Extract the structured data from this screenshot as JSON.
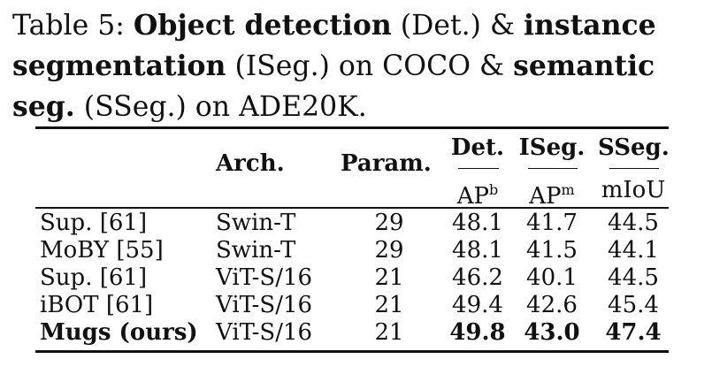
{
  "caption": {
    "label": "Table 5:",
    "p1": "Object detection",
    "p2": " (Det.) & ",
    "p3": "instance segmentation",
    "p4": " (ISeg.) on COCO & ",
    "p5": "semantic seg.",
    "p6": " (SSeg.) on ADE20K."
  },
  "table": {
    "headers": {
      "arch": "Arch.",
      "param": "Param.",
      "det": "Det.",
      "iseg": "ISeg.",
      "sseg": "SSeg."
    },
    "subheaders": {
      "det": "AP",
      "det_sup": "b",
      "iseg": "AP",
      "iseg_sup": "m",
      "sseg": "mIoU"
    },
    "rows": [
      {
        "method": "Sup. [61]",
        "arch": "Swin-T",
        "param": "29",
        "det": "48.1",
        "iseg": "41.7",
        "sseg": "44.5"
      },
      {
        "method": "MoBY [55]",
        "arch": "Swin-T",
        "param": "29",
        "det": "48.1",
        "iseg": "41.5",
        "sseg": "44.1"
      },
      {
        "method": "Sup. [61]",
        "arch": "ViT-S/16",
        "param": "21",
        "det": "46.2",
        "iseg": "40.1",
        "sseg": "44.5"
      },
      {
        "method": "iBOT [61]",
        "arch": "ViT-S/16",
        "param": "21",
        "det": "49.4",
        "iseg": "42.6",
        "sseg": "45.4"
      },
      {
        "method": "Mugs (ours)",
        "arch": "ViT-S/16",
        "param": "21",
        "det": "49.8",
        "iseg": "43.0",
        "sseg": "47.4"
      }
    ]
  }
}
